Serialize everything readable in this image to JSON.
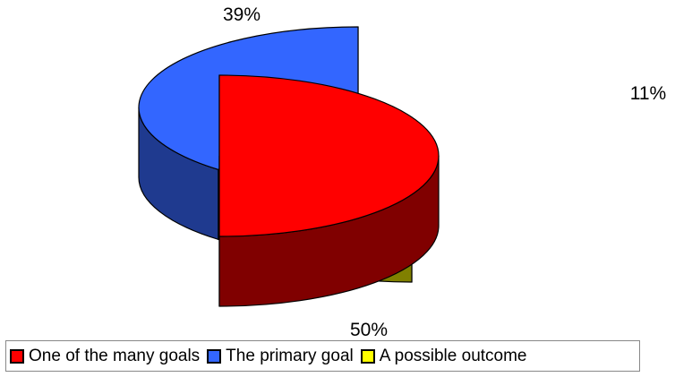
{
  "chart_data": {
    "type": "pie",
    "style": "3d-exploded",
    "title": "",
    "legend_position": "bottom",
    "slices": [
      {
        "name": "One of the many goals",
        "value": 50,
        "label": "50%",
        "color": "#ff0000",
        "side_color": "#800000"
      },
      {
        "name": "The primary goal",
        "value": 39,
        "label": "39%",
        "color": "#3366ff",
        "side_color": "#1f3a8f"
      },
      {
        "name": "A possible outcome",
        "value": 11,
        "label": "11%",
        "color": "#ffff00",
        "side_color": "#808000"
      }
    ]
  }
}
